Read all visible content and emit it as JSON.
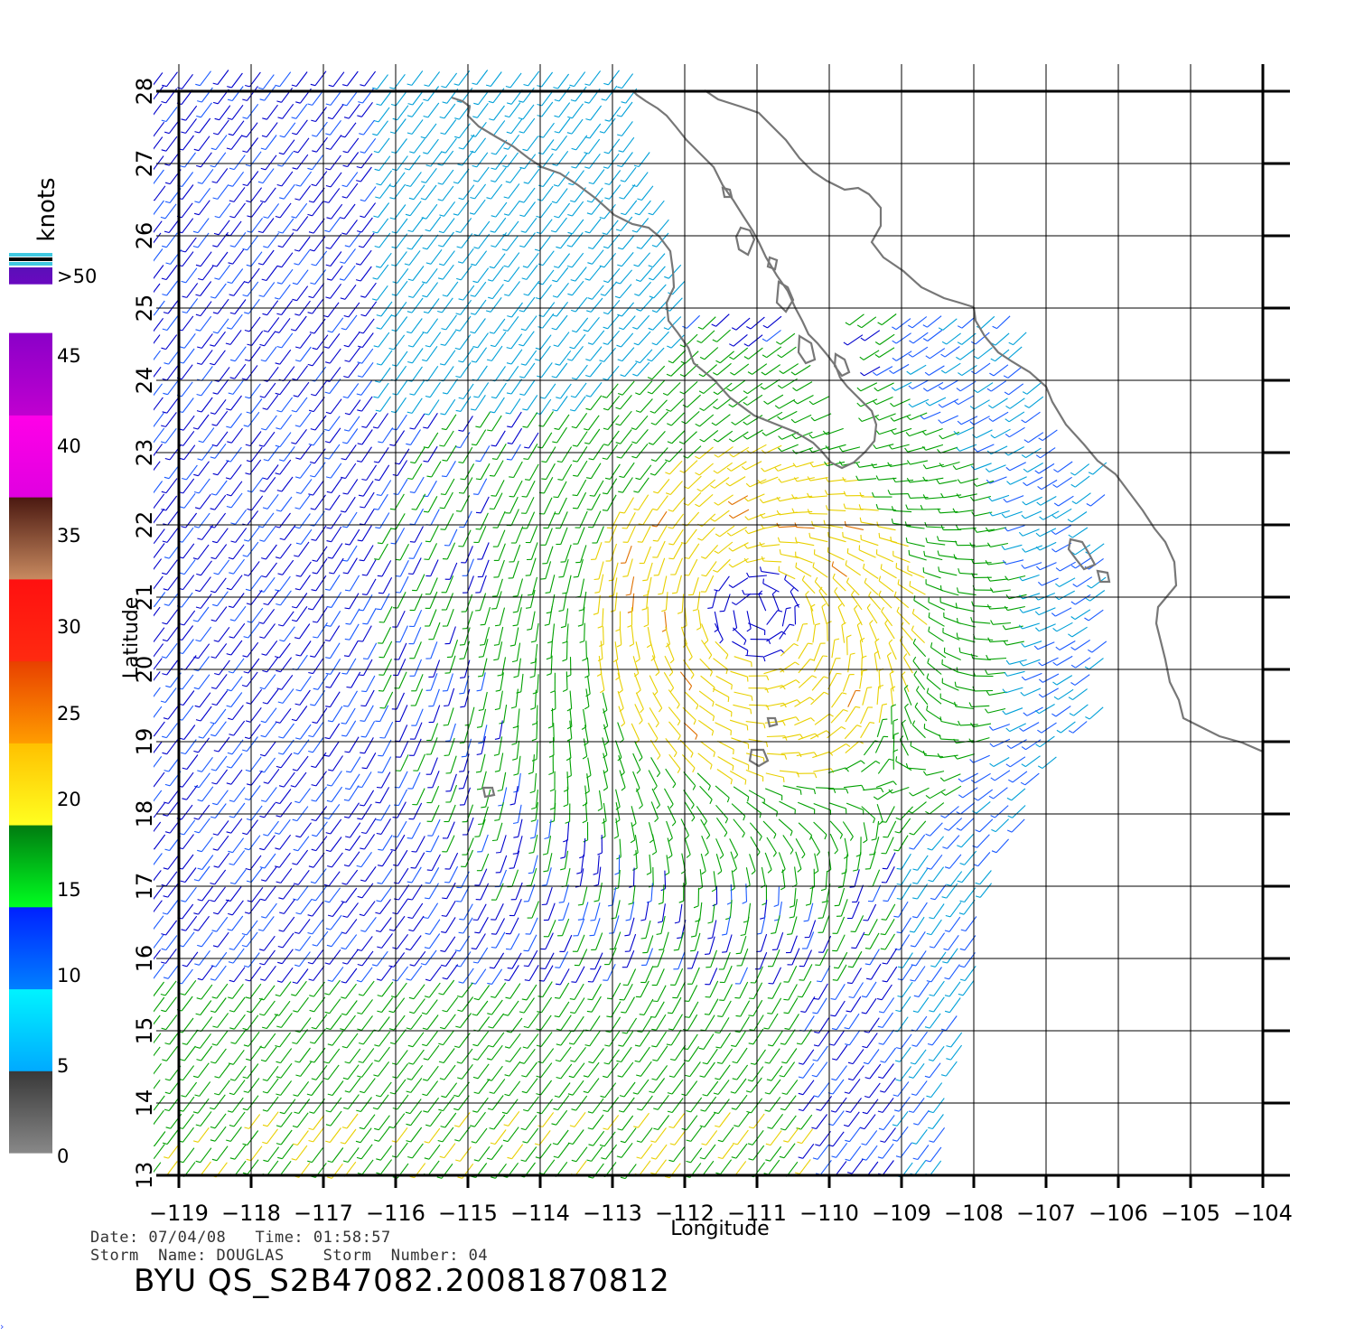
{
  "map": {
    "xlabel": "Longitude",
    "ylabel": "Latitude",
    "lon_range": [
      -119,
      -104
    ],
    "lat_range": [
      13,
      28
    ],
    "lon_ticks": [
      "−119",
      "−118",
      "−117",
      "−116",
      "−115",
      "−114",
      "−113",
      "−112",
      "−111",
      "−110",
      "−109",
      "−108",
      "−107",
      "−106",
      "−105",
      "−104"
    ],
    "lat_ticks": [
      "13",
      "14",
      "15",
      "16",
      "17",
      "18",
      "19",
      "20",
      "21",
      "22",
      "23",
      "24",
      "25",
      "26",
      "27",
      "28"
    ],
    "grid": true,
    "storm_center": {
      "lon": -111.0,
      "lat": 20.8
    },
    "colors": {
      "coastline": "#777777",
      "grid": "#000000"
    }
  },
  "colorbar": {
    "unit_label": "knots",
    "labels": [
      ">50",
      "45",
      "40",
      "35",
      "30",
      "25",
      "20",
      "15",
      "10",
      "5",
      "0"
    ],
    "bands": [
      {
        "range": "0-5",
        "top": "#383838",
        "bottom": "#888888"
      },
      {
        "range": "5-10",
        "top": "#00f4ff",
        "bottom": "#00aaff"
      },
      {
        "range": "10-15",
        "top": "#0020ff",
        "bottom": "#0080ff"
      },
      {
        "range": "15-20",
        "top": "#007a10",
        "bottom": "#00ff20"
      },
      {
        "range": "20-25",
        "top": "#ffc000",
        "bottom": "#ffff20"
      },
      {
        "range": "25-30",
        "top": "#e84000",
        "bottom": "#ff9c00"
      },
      {
        "range": "30-35",
        "top": "#ff1010",
        "bottom": "#ff2a10"
      },
      {
        "range": "35-40",
        "top": "#4a1810",
        "bottom": "#c88a60"
      },
      {
        "range": "40-45",
        "top": "#ff00e8",
        "bottom": "#e000e0"
      },
      {
        "range": "45-50",
        "top": "#8a00c8",
        "bottom": "#c000d0"
      },
      {
        "range": ">50",
        "top": "#5a10b8",
        "bottom": "#6a08c0"
      }
    ],
    "cap_colors": [
      "#40c8e0",
      "#000000",
      "#40c8e0"
    ]
  },
  "wind_colors": {
    "calm": "#0000cc",
    "light": "#1a5aff",
    "moderate": "#00a0d8",
    "strong": "#00a000",
    "gale": "#e8d000",
    "peak": "#e07000"
  },
  "footer": {
    "date_line": "Date: 07/04/08   Time: 01:58:57",
    "storm_line": "Storm  Name: DOUGLAS    Storm  Number: 04",
    "product_id": "BYU  QS_S2B47082.20081870812"
  }
}
